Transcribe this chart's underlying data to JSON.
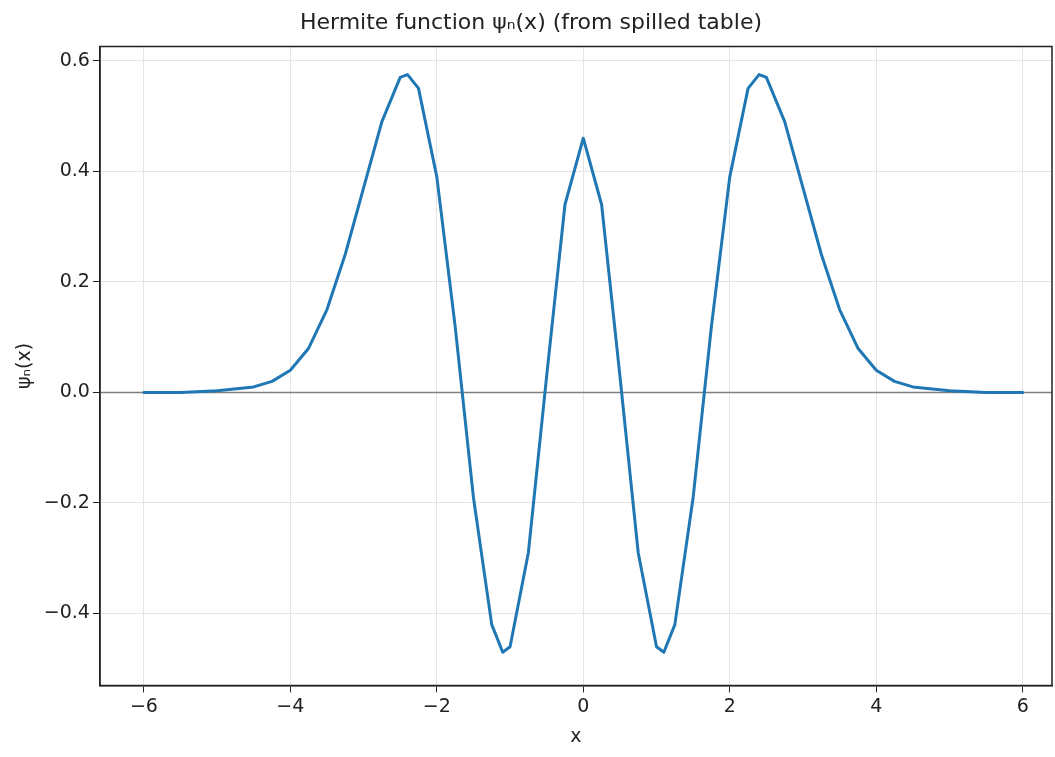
{
  "chart_data": {
    "type": "line",
    "title": "Hermite function ψₙ(x) (from spilled table)",
    "xlabel": "x",
    "ylabel": "ψₙ(x)",
    "x": [
      -6,
      -5.5,
      -5,
      -4.5,
      -4.25,
      -4,
      -3.75,
      -3.5,
      -3.25,
      -3,
      -2.75,
      -2.5,
      -2.4,
      -2.25,
      -2,
      -1.75,
      -1.5,
      -1.25,
      -1.1,
      -1,
      -0.75,
      -0.5,
      -0.25,
      0,
      0.25,
      0.5,
      0.75,
      1,
      1.1,
      1.25,
      1.5,
      1.75,
      2,
      2.25,
      2.4,
      2.5,
      2.75,
      3,
      3.25,
      3.5,
      3.75,
      4,
      4.25,
      4.5,
      5,
      5.5,
      6
    ],
    "series": [
      {
        "color": "#1f77b4",
        "values": [
          0,
          0,
          0.003,
          0.01,
          0.02,
          0.04,
          0.08,
          0.15,
          0.25,
          0.37,
          0.49,
          0.57,
          0.575,
          0.55,
          0.39,
          0.12,
          -0.19,
          -0.42,
          -0.47,
          -0.46,
          -0.29,
          0.03,
          0.34,
          0.46,
          0.34,
          0.03,
          -0.29,
          -0.46,
          -0.47,
          -0.42,
          -0.19,
          0.12,
          0.39,
          0.55,
          0.575,
          0.57,
          0.49,
          0.37,
          0.25,
          0.15,
          0.08,
          0.04,
          0.02,
          0.01,
          0.003,
          0,
          0
        ]
      }
    ],
    "xlim": [
      -6.6,
      6.4
    ],
    "ylim": [
      -0.53,
      0.626
    ],
    "xticks": [
      -6,
      -4,
      -2,
      0,
      2,
      4,
      6
    ],
    "yticks": [
      -0.4,
      -0.2,
      {
        "value": 0,
        "label": "0.0"
      },
      0.2,
      0.4,
      0.6
    ],
    "ref_lines": [
      {
        "axis": "y",
        "value": 0,
        "color": "#808080"
      }
    ],
    "grid": true,
    "legend": false,
    "marker": "none",
    "line_style": "solid"
  }
}
